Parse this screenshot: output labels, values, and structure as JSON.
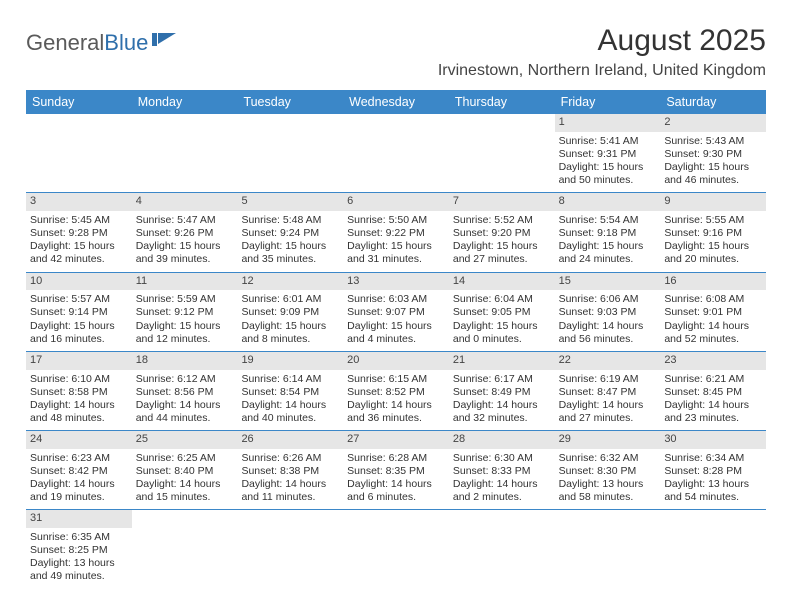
{
  "logo": {
    "text1": "General",
    "text2": "Blue"
  },
  "title": "August 2025",
  "location": "Irvinestown, Northern Ireland, United Kingdom",
  "colors": {
    "header_bg": "#3b87c8",
    "header_text": "#ffffff",
    "daynum_bg": "#e6e6e6",
    "row_border": "#3b87c8",
    "text": "#333333",
    "logo_gray": "#5a5a5a",
    "logo_blue": "#2f6fab"
  },
  "weekdays": [
    "Sunday",
    "Monday",
    "Tuesday",
    "Wednesday",
    "Thursday",
    "Friday",
    "Saturday"
  ],
  "weeks": [
    [
      null,
      null,
      null,
      null,
      null,
      {
        "n": "1",
        "sr": "5:41 AM",
        "ss": "9:31 PM",
        "dl": "15 hours and 50 minutes."
      },
      {
        "n": "2",
        "sr": "5:43 AM",
        "ss": "9:30 PM",
        "dl": "15 hours and 46 minutes."
      }
    ],
    [
      {
        "n": "3",
        "sr": "5:45 AM",
        "ss": "9:28 PM",
        "dl": "15 hours and 42 minutes."
      },
      {
        "n": "4",
        "sr": "5:47 AM",
        "ss": "9:26 PM",
        "dl": "15 hours and 39 minutes."
      },
      {
        "n": "5",
        "sr": "5:48 AM",
        "ss": "9:24 PM",
        "dl": "15 hours and 35 minutes."
      },
      {
        "n": "6",
        "sr": "5:50 AM",
        "ss": "9:22 PM",
        "dl": "15 hours and 31 minutes."
      },
      {
        "n": "7",
        "sr": "5:52 AM",
        "ss": "9:20 PM",
        "dl": "15 hours and 27 minutes."
      },
      {
        "n": "8",
        "sr": "5:54 AM",
        "ss": "9:18 PM",
        "dl": "15 hours and 24 minutes."
      },
      {
        "n": "9",
        "sr": "5:55 AM",
        "ss": "9:16 PM",
        "dl": "15 hours and 20 minutes."
      }
    ],
    [
      {
        "n": "10",
        "sr": "5:57 AM",
        "ss": "9:14 PM",
        "dl": "15 hours and 16 minutes."
      },
      {
        "n": "11",
        "sr": "5:59 AM",
        "ss": "9:12 PM",
        "dl": "15 hours and 12 minutes."
      },
      {
        "n": "12",
        "sr": "6:01 AM",
        "ss": "9:09 PM",
        "dl": "15 hours and 8 minutes."
      },
      {
        "n": "13",
        "sr": "6:03 AM",
        "ss": "9:07 PM",
        "dl": "15 hours and 4 minutes."
      },
      {
        "n": "14",
        "sr": "6:04 AM",
        "ss": "9:05 PM",
        "dl": "15 hours and 0 minutes."
      },
      {
        "n": "15",
        "sr": "6:06 AM",
        "ss": "9:03 PM",
        "dl": "14 hours and 56 minutes."
      },
      {
        "n": "16",
        "sr": "6:08 AM",
        "ss": "9:01 PM",
        "dl": "14 hours and 52 minutes."
      }
    ],
    [
      {
        "n": "17",
        "sr": "6:10 AM",
        "ss": "8:58 PM",
        "dl": "14 hours and 48 minutes."
      },
      {
        "n": "18",
        "sr": "6:12 AM",
        "ss": "8:56 PM",
        "dl": "14 hours and 44 minutes."
      },
      {
        "n": "19",
        "sr": "6:14 AM",
        "ss": "8:54 PM",
        "dl": "14 hours and 40 minutes."
      },
      {
        "n": "20",
        "sr": "6:15 AM",
        "ss": "8:52 PM",
        "dl": "14 hours and 36 minutes."
      },
      {
        "n": "21",
        "sr": "6:17 AM",
        "ss": "8:49 PM",
        "dl": "14 hours and 32 minutes."
      },
      {
        "n": "22",
        "sr": "6:19 AM",
        "ss": "8:47 PM",
        "dl": "14 hours and 27 minutes."
      },
      {
        "n": "23",
        "sr": "6:21 AM",
        "ss": "8:45 PM",
        "dl": "14 hours and 23 minutes."
      }
    ],
    [
      {
        "n": "24",
        "sr": "6:23 AM",
        "ss": "8:42 PM",
        "dl": "14 hours and 19 minutes."
      },
      {
        "n": "25",
        "sr": "6:25 AM",
        "ss": "8:40 PM",
        "dl": "14 hours and 15 minutes."
      },
      {
        "n": "26",
        "sr": "6:26 AM",
        "ss": "8:38 PM",
        "dl": "14 hours and 11 minutes."
      },
      {
        "n": "27",
        "sr": "6:28 AM",
        "ss": "8:35 PM",
        "dl": "14 hours and 6 minutes."
      },
      {
        "n": "28",
        "sr": "6:30 AM",
        "ss": "8:33 PM",
        "dl": "14 hours and 2 minutes."
      },
      {
        "n": "29",
        "sr": "6:32 AM",
        "ss": "8:30 PM",
        "dl": "13 hours and 58 minutes."
      },
      {
        "n": "30",
        "sr": "6:34 AM",
        "ss": "8:28 PM",
        "dl": "13 hours and 54 minutes."
      }
    ],
    [
      {
        "n": "31",
        "sr": "6:35 AM",
        "ss": "8:25 PM",
        "dl": "13 hours and 49 minutes."
      },
      null,
      null,
      null,
      null,
      null,
      null
    ]
  ],
  "labels": {
    "sunrise": "Sunrise:",
    "sunset": "Sunset:",
    "daylight": "Daylight:"
  }
}
